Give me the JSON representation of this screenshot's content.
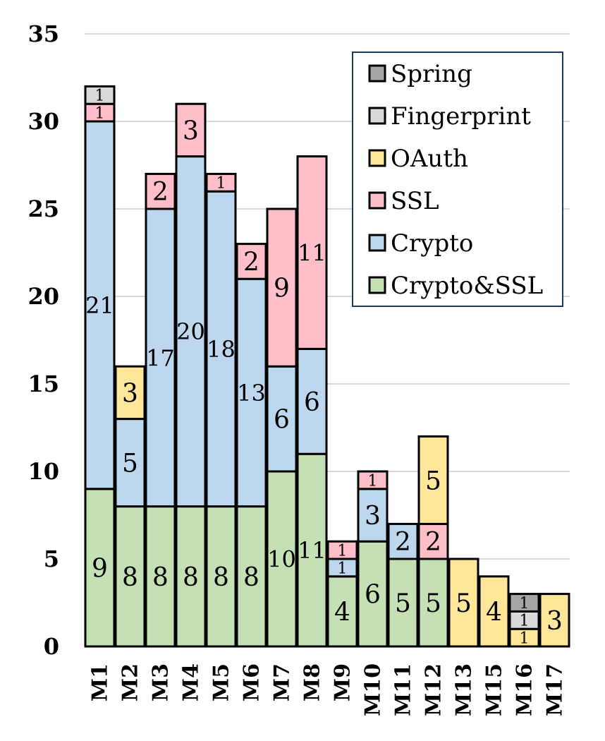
{
  "chart_data": {
    "type": "bar",
    "stacked": true,
    "title": "",
    "xlabel": "",
    "ylabel": "",
    "ylim": [
      0,
      35
    ],
    "yticks": [
      "0",
      "5",
      "10",
      "15",
      "20",
      "25",
      "30",
      "35"
    ],
    "grid": true,
    "legend_position": "top-right",
    "categories": [
      "M1",
      "M2",
      "M3",
      "M4",
      "M5",
      "M6",
      "M7",
      "M8",
      "M9",
      "M10",
      "M11",
      "M12",
      "M13",
      "M15",
      "M16",
      "M17"
    ],
    "series": [
      {
        "name": "Crypto&SSL",
        "color": "#c5e0b4",
        "values": [
          9,
          8,
          8,
          8,
          8,
          8,
          10,
          11,
          4,
          6,
          5,
          5,
          0,
          0,
          0,
          0
        ]
      },
      {
        "name": "Crypto",
        "color": "#bdd7ee",
        "values": [
          21,
          5,
          17,
          20,
          18,
          13,
          6,
          6,
          1,
          3,
          2,
          0,
          0,
          0,
          0,
          0
        ]
      },
      {
        "name": "SSL",
        "color": "#ffbfc8",
        "values": [
          1,
          0,
          2,
          3,
          1,
          2,
          9,
          11,
          1,
          1,
          0,
          2,
          0,
          0,
          0,
          0
        ]
      },
      {
        "name": "OAuth",
        "color": "#ffe699",
        "values": [
          0,
          3,
          0,
          0,
          0,
          0,
          0,
          0,
          0,
          0,
          0,
          5,
          5,
          4,
          1,
          3
        ]
      },
      {
        "name": "Fingerprint",
        "color": "#d9d9d9",
        "values": [
          1,
          0,
          0,
          0,
          0,
          0,
          0,
          0,
          0,
          0,
          0,
          0,
          0,
          0,
          1,
          0
        ]
      },
      {
        "name": "Spring",
        "color": "#a6a6a6",
        "values": [
          0,
          0,
          0,
          0,
          0,
          0,
          0,
          0,
          0,
          0,
          0,
          0,
          0,
          0,
          1,
          0
        ]
      }
    ],
    "legend_order": [
      "Spring",
      "Fingerprint",
      "OAuth",
      "SSL",
      "Crypto",
      "Crypto&SSL"
    ]
  }
}
